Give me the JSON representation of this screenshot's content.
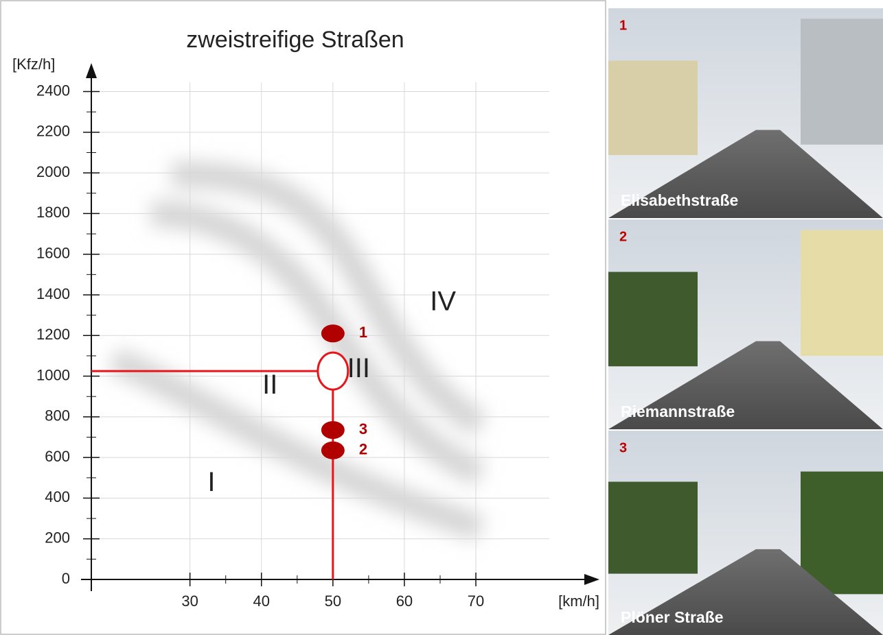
{
  "chart_data": {
    "type": "scatter",
    "title": "zweistreifige Straßen",
    "y_label": "[Kfz/h]",
    "x_label": "[km/h]",
    "xlim": [
      16.2,
      87
    ],
    "ylim": [
      0,
      2530
    ],
    "xticks": [
      30,
      40,
      50,
      60,
      70
    ],
    "yticks": [
      0,
      200,
      400,
      600,
      800,
      1000,
      1200,
      1400,
      1600,
      1800,
      2000,
      2200,
      2400
    ],
    "grid": true,
    "color": "#b00000",
    "series": [
      {
        "x": [
          50,
          50,
          50
        ],
        "values": [
          1210,
          635,
          735
        ],
        "labels": [
          "1",
          "2",
          "3"
        ]
      }
    ],
    "reference": {
      "x": 50,
      "y": 1025,
      "color": "#e8141a"
    },
    "annotations": [
      {
        "text": "I",
        "x": 33,
        "y": 470
      },
      {
        "text": "II",
        "x": 41.2,
        "y": 950
      },
      {
        "text": "III",
        "x": 53.6,
        "y": 1030
      },
      {
        "text": "IV",
        "x": 65.4,
        "y": 1360
      }
    ]
  },
  "photos": [
    {
      "number": "1",
      "caption": "Elisabethstraße"
    },
    {
      "number": "2",
      "caption": "Riemannstraße"
    },
    {
      "number": "3",
      "caption": "Plöner Straße"
    }
  ]
}
